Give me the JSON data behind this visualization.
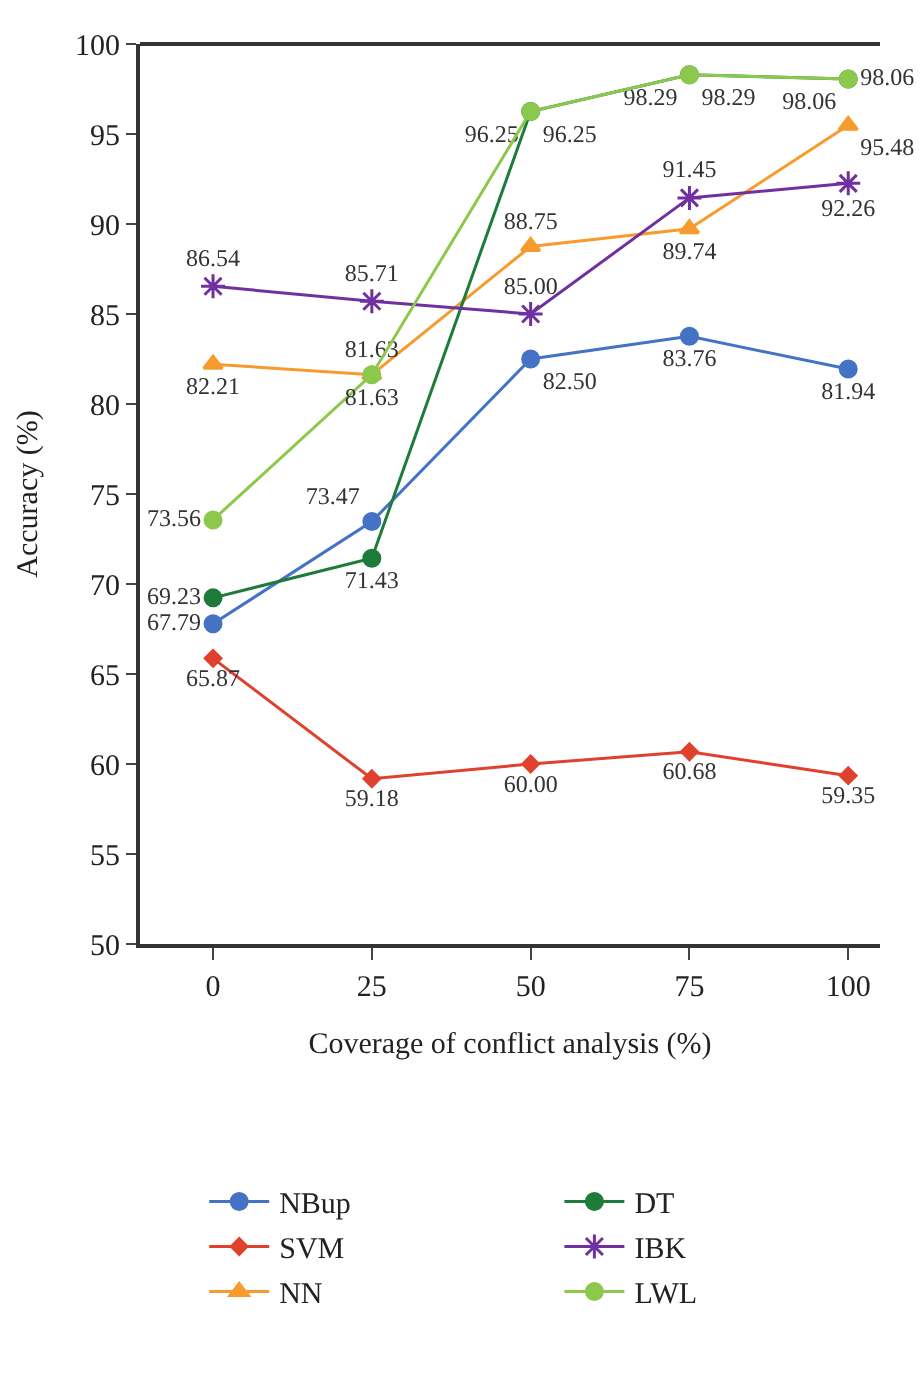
{
  "chart_data": {
    "type": "line",
    "xlabel": "Coverage of conflict analysis (%)",
    "ylabel": "Accuracy (%)",
    "x": [
      0,
      25,
      50,
      75,
      100
    ],
    "xlim": [
      -11.5,
      105
    ],
    "xticks": [
      0,
      25,
      50,
      75,
      100
    ],
    "ylim": [
      50,
      100
    ],
    "yticks": [
      50,
      55,
      60,
      65,
      70,
      75,
      80,
      85,
      90,
      95,
      100
    ],
    "legend": "bottom",
    "data_labels": true,
    "line_style": "solid",
    "series": [
      {
        "name": "NBup",
        "color": "#4472c4",
        "marker": "circle",
        "values": [
          67.79,
          73.47,
          82.5,
          83.76,
          81.94
        ],
        "value_labels": [
          "67.79",
          "73.47",
          "82.50",
          "83.76",
          "81.94"
        ]
      },
      {
        "name": "SVM",
        "color": "#e0412f",
        "marker": "diamond",
        "values": [
          65.87,
          59.18,
          60.0,
          60.68,
          59.35
        ],
        "value_labels": [
          "65.87",
          "59.18",
          "60.00",
          "60.68",
          "59.35"
        ]
      },
      {
        "name": "NN",
        "color": "#f79b2e",
        "marker": "triangle",
        "values": [
          82.21,
          81.63,
          88.75,
          89.74,
          95.48
        ]
      },
      {
        "name": "DT",
        "color": "#1e7b3a",
        "marker": "circle",
        "values": [
          69.23,
          71.43,
          96.25,
          98.29,
          98.06
        ]
      },
      {
        "name": "IBK",
        "color": "#7030a0",
        "marker": "cross",
        "values": [
          86.54,
          85.71,
          85.0,
          91.45,
          92.26
        ],
        "value_labels": [
          "86.54",
          "85.71",
          "85.00",
          "91.45",
          "92.26"
        ]
      },
      {
        "name": "LWL",
        "color": "#8cc84b",
        "marker": "circle",
        "values": [
          73.56,
          81.63,
          96.25,
          98.29,
          98.06
        ]
      }
    ]
  }
}
